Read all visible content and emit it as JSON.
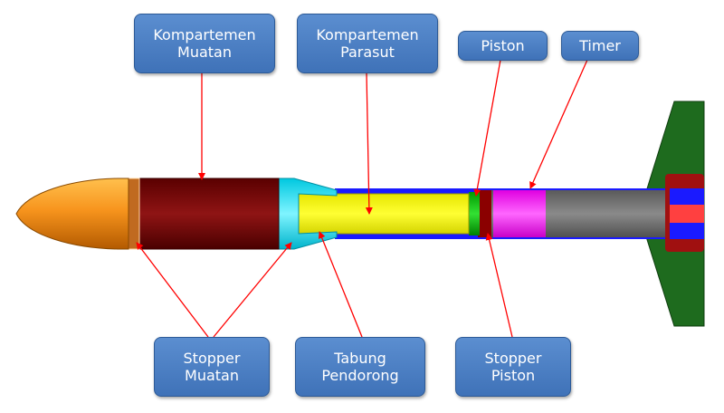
{
  "labels": {
    "kompartemen_muatan": [
      "Kompartemen",
      "Muatan"
    ],
    "kompartemen_parasut": [
      "Kompartemen",
      "Parasut"
    ],
    "piston": [
      "Piston"
    ],
    "timer": [
      "Timer"
    ],
    "stopper_muatan": [
      "Stopper",
      "Muatan"
    ],
    "tabung_pendorong": [
      "Tabung",
      "Pendorong"
    ],
    "stopper_piston": [
      "Stopper",
      "Piston"
    ]
  },
  "colors": {
    "label_fill": "#4f81c7",
    "arrow": "#ff0000",
    "nose_cone": "#f7941d",
    "payload_compartment": "#7a0c0c",
    "parachute_compartment": "#ffff00",
    "pusher_tube": "#00e5ff",
    "piston": "#00c000",
    "piston_stopper": "#8b0000",
    "timer": "#ff00ff",
    "motor_body": "#707070",
    "fin": "#1e6b1e",
    "outer_tube": "#1a1aff"
  }
}
